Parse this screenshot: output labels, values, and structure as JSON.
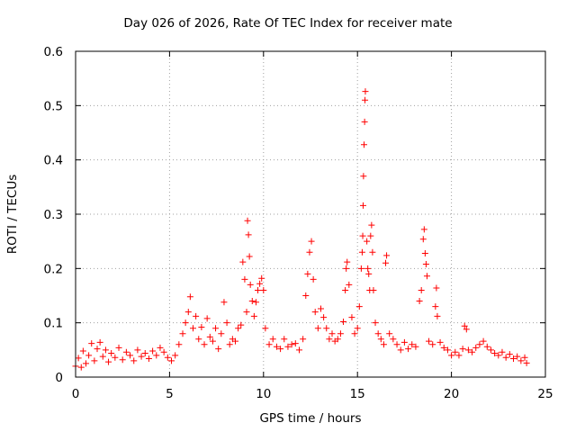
{
  "chart_data": {
    "type": "scatter",
    "title": "Day 026 of 2026, Rate Of TEC Index for receiver mate",
    "xlabel": "GPS time / hours",
    "ylabel": "ROTI / TECUs",
    "xlim": [
      0,
      25
    ],
    "ylim": [
      0,
      0.6
    ],
    "xticks": [
      0,
      5,
      10,
      15,
      20,
      25
    ],
    "yticks": [
      0,
      0.1,
      0.2,
      0.3,
      0.4,
      0.5,
      0.6
    ],
    "grid": true,
    "marker": "+",
    "color": "#ff0000",
    "points": [
      [
        0.0,
        0.02
      ],
      [
        0.15,
        0.035
      ],
      [
        0.3,
        0.018
      ],
      [
        0.4,
        0.048
      ],
      [
        0.55,
        0.025
      ],
      [
        0.7,
        0.04
      ],
      [
        0.85,
        0.062
      ],
      [
        1.0,
        0.03
      ],
      [
        1.15,
        0.052
      ],
      [
        1.3,
        0.064
      ],
      [
        1.45,
        0.038
      ],
      [
        1.6,
        0.05
      ],
      [
        1.75,
        0.028
      ],
      [
        1.9,
        0.044
      ],
      [
        2.1,
        0.036
      ],
      [
        2.3,
        0.054
      ],
      [
        2.5,
        0.032
      ],
      [
        2.7,
        0.046
      ],
      [
        2.9,
        0.04
      ],
      [
        3.1,
        0.03
      ],
      [
        3.3,
        0.05
      ],
      [
        3.5,
        0.038
      ],
      [
        3.7,
        0.044
      ],
      [
        3.9,
        0.034
      ],
      [
        4.1,
        0.048
      ],
      [
        4.3,
        0.04
      ],
      [
        4.5,
        0.054
      ],
      [
        4.7,
        0.046
      ],
      [
        4.9,
        0.036
      ],
      [
        5.1,
        0.03
      ],
      [
        5.3,
        0.04
      ],
      [
        5.5,
        0.06
      ],
      [
        5.7,
        0.08
      ],
      [
        5.85,
        0.1
      ],
      [
        6.0,
        0.12
      ],
      [
        6.1,
        0.148
      ],
      [
        6.25,
        0.09
      ],
      [
        6.4,
        0.112
      ],
      [
        6.55,
        0.07
      ],
      [
        6.7,
        0.092
      ],
      [
        6.85,
        0.06
      ],
      [
        7.0,
        0.108
      ],
      [
        7.15,
        0.074
      ],
      [
        7.3,
        0.066
      ],
      [
        7.45,
        0.09
      ],
      [
        7.6,
        0.052
      ],
      [
        7.75,
        0.08
      ],
      [
        7.9,
        0.138
      ],
      [
        8.05,
        0.1
      ],
      [
        8.2,
        0.06
      ],
      [
        8.35,
        0.07
      ],
      [
        8.5,
        0.066
      ],
      [
        8.65,
        0.09
      ],
      [
        8.8,
        0.096
      ],
      [
        8.9,
        0.212
      ],
      [
        9.0,
        0.18
      ],
      [
        9.1,
        0.12
      ],
      [
        9.15,
        0.288
      ],
      [
        9.2,
        0.262
      ],
      [
        9.25,
        0.222
      ],
      [
        9.3,
        0.17
      ],
      [
        9.4,
        0.14
      ],
      [
        9.5,
        0.112
      ],
      [
        9.6,
        0.138
      ],
      [
        9.7,
        0.16
      ],
      [
        9.8,
        0.172
      ],
      [
        9.9,
        0.182
      ],
      [
        10.0,
        0.16
      ],
      [
        10.1,
        0.09
      ],
      [
        10.3,
        0.06
      ],
      [
        10.5,
        0.07
      ],
      [
        10.7,
        0.056
      ],
      [
        10.9,
        0.052
      ],
      [
        11.1,
        0.07
      ],
      [
        11.3,
        0.056
      ],
      [
        11.5,
        0.06
      ],
      [
        11.7,
        0.062
      ],
      [
        11.9,
        0.05
      ],
      [
        12.1,
        0.07
      ],
      [
        12.25,
        0.15
      ],
      [
        12.35,
        0.19
      ],
      [
        12.45,
        0.23
      ],
      [
        12.55,
        0.25
      ],
      [
        12.65,
        0.18
      ],
      [
        12.75,
        0.12
      ],
      [
        12.9,
        0.09
      ],
      [
        13.05,
        0.126
      ],
      [
        13.2,
        0.11
      ],
      [
        13.35,
        0.09
      ],
      [
        13.5,
        0.07
      ],
      [
        13.65,
        0.08
      ],
      [
        13.8,
        0.066
      ],
      [
        13.95,
        0.07
      ],
      [
        14.1,
        0.08
      ],
      [
        14.25,
        0.102
      ],
      [
        14.35,
        0.16
      ],
      [
        14.4,
        0.2
      ],
      [
        14.45,
        0.212
      ],
      [
        14.55,
        0.17
      ],
      [
        14.7,
        0.11
      ],
      [
        14.85,
        0.08
      ],
      [
        15.0,
        0.09
      ],
      [
        15.1,
        0.13
      ],
      [
        15.2,
        0.2
      ],
      [
        15.25,
        0.23
      ],
      [
        15.28,
        0.26
      ],
      [
        15.3,
        0.316
      ],
      [
        15.32,
        0.37
      ],
      [
        15.35,
        0.428
      ],
      [
        15.38,
        0.47
      ],
      [
        15.4,
        0.51
      ],
      [
        15.42,
        0.526
      ],
      [
        15.5,
        0.25
      ],
      [
        15.55,
        0.2
      ],
      [
        15.6,
        0.19
      ],
      [
        15.65,
        0.16
      ],
      [
        15.7,
        0.26
      ],
      [
        15.75,
        0.28
      ],
      [
        15.8,
        0.23
      ],
      [
        15.85,
        0.16
      ],
      [
        15.95,
        0.1
      ],
      [
        16.1,
        0.08
      ],
      [
        16.25,
        0.07
      ],
      [
        16.4,
        0.06
      ],
      [
        16.5,
        0.21
      ],
      [
        16.55,
        0.224
      ],
      [
        16.7,
        0.08
      ],
      [
        16.9,
        0.07
      ],
      [
        17.1,
        0.06
      ],
      [
        17.3,
        0.05
      ],
      [
        17.5,
        0.064
      ],
      [
        17.7,
        0.052
      ],
      [
        17.9,
        0.06
      ],
      [
        18.1,
        0.056
      ],
      [
        18.3,
        0.14
      ],
      [
        18.4,
        0.16
      ],
      [
        18.5,
        0.254
      ],
      [
        18.55,
        0.272
      ],
      [
        18.6,
        0.228
      ],
      [
        18.65,
        0.208
      ],
      [
        18.7,
        0.186
      ],
      [
        18.8,
        0.066
      ],
      [
        19.0,
        0.06
      ],
      [
        19.15,
        0.13
      ],
      [
        19.2,
        0.164
      ],
      [
        19.25,
        0.112
      ],
      [
        19.4,
        0.064
      ],
      [
        19.6,
        0.054
      ],
      [
        19.8,
        0.05
      ],
      [
        20.0,
        0.04
      ],
      [
        20.2,
        0.046
      ],
      [
        20.4,
        0.04
      ],
      [
        20.6,
        0.052
      ],
      [
        20.7,
        0.094
      ],
      [
        20.8,
        0.088
      ],
      [
        20.9,
        0.05
      ],
      [
        21.1,
        0.046
      ],
      [
        21.3,
        0.054
      ],
      [
        21.5,
        0.06
      ],
      [
        21.7,
        0.066
      ],
      [
        21.9,
        0.056
      ],
      [
        22.1,
        0.05
      ],
      [
        22.3,
        0.044
      ],
      [
        22.5,
        0.04
      ],
      [
        22.7,
        0.046
      ],
      [
        22.9,
        0.036
      ],
      [
        23.1,
        0.042
      ],
      [
        23.3,
        0.034
      ],
      [
        23.5,
        0.038
      ],
      [
        23.7,
        0.03
      ],
      [
        23.9,
        0.036
      ],
      [
        24.0,
        0.026
      ]
    ]
  }
}
